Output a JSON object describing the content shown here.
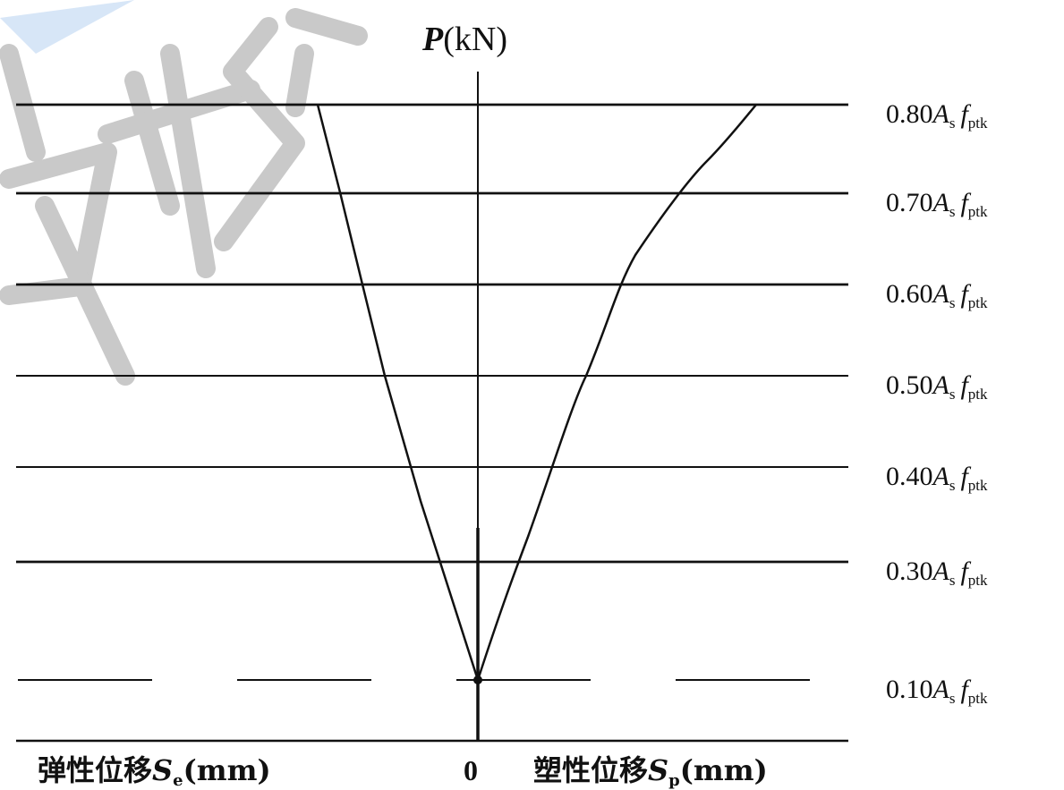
{
  "chart_data": {
    "type": "line",
    "y_axis_title": {
      "var": "P",
      "unit": "(kN)"
    },
    "load_levels": [
      {
        "coef": "0.80",
        "dashed": false
      },
      {
        "coef": "0.70",
        "dashed": false
      },
      {
        "coef": "0.60",
        "dashed": false
      },
      {
        "coef": "0.50",
        "dashed": false
      },
      {
        "coef": "0.40",
        "dashed": false
      },
      {
        "coef": "0.30",
        "dashed": false
      },
      {
        "coef": "0.10",
        "dashed": true
      }
    ],
    "level_symbol": {
      "A": "A",
      "A_sub": "s",
      "f": "f",
      "f_sub": "ptk"
    },
    "x_left_label": {
      "text": "弹性位移",
      "sym": "S",
      "sub": "e",
      "unit": "(mm)"
    },
    "x_right_label": {
      "text": "塑性位移",
      "sym": "S",
      "sub": "p",
      "unit": "(mm)"
    },
    "origin_label": "0",
    "series": [
      {
        "side": "left",
        "comment": "elastic displacement line (linear)"
      },
      {
        "side": "right",
        "comment": "plastic displacement curve"
      }
    ]
  },
  "colors": {
    "line": "#111111",
    "watermark": "#c9c9c9",
    "accent": "#cfe0f5"
  }
}
